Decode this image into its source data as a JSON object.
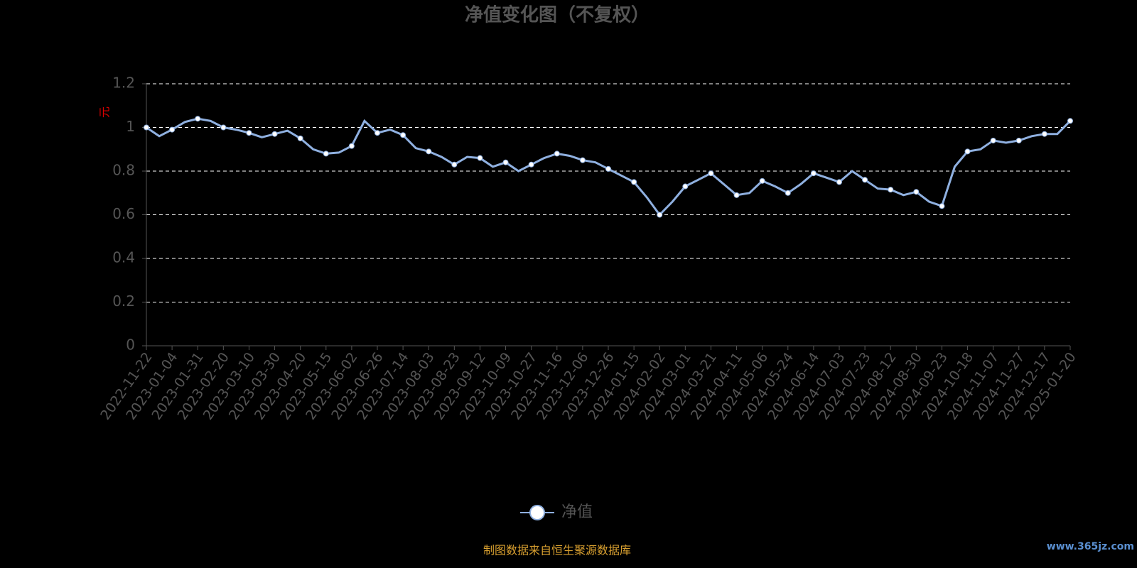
{
  "chart_data": {
    "type": "line",
    "title": "净值变化图（不复权）",
    "y_label": "元",
    "categories": [
      "2022-11-22",
      null,
      "2023-01-04",
      null,
      "2023-01-31",
      null,
      "2023-02-20",
      null,
      "2023-03-10",
      null,
      "2023-03-30",
      null,
      "2023-04-20",
      null,
      "2023-05-15",
      null,
      "2023-06-02",
      null,
      "2023-06-26",
      null,
      "2023-07-14",
      null,
      "2023-08-03",
      null,
      "2023-08-23",
      null,
      "2023-09-12",
      null,
      "2023-10-09",
      null,
      "2023-10-27",
      null,
      "2023-11-16",
      null,
      "2023-12-06",
      null,
      "2023-12-26",
      null,
      "2024-01-15",
      null,
      "2024-02-02",
      null,
      "2024-03-01",
      null,
      "2024-03-21",
      null,
      "2024-04-11",
      null,
      "2024-05-06",
      null,
      "2024-05-24",
      null,
      "2024-06-14",
      null,
      "2024-07-03",
      null,
      "2024-07-23",
      null,
      "2024-08-12",
      null,
      "2024-08-30",
      null,
      "2024-09-23",
      null,
      "2024-10-18",
      null,
      "2024-11-07",
      null,
      "2024-11-27",
      null,
      "2024-12-17",
      null,
      "2025-01-20"
    ],
    "series": [
      {
        "name": "净值",
        "color": "#8fb0e0",
        "values": [
          1.0,
          0.96,
          0.99,
          1.025,
          1.04,
          1.03,
          1.0,
          0.99,
          0.975,
          0.955,
          0.97,
          0.985,
          0.95,
          0.9,
          0.88,
          0.885,
          0.915,
          1.03,
          0.975,
          0.99,
          0.965,
          0.905,
          0.89,
          0.865,
          0.83,
          0.865,
          0.86,
          0.82,
          0.84,
          0.8,
          0.83,
          0.86,
          0.88,
          0.87,
          0.85,
          0.84,
          0.81,
          0.78,
          0.75,
          0.68,
          0.6,
          0.66,
          0.73,
          0.76,
          0.79,
          0.74,
          0.69,
          0.7,
          0.755,
          0.73,
          0.7,
          0.74,
          0.79,
          0.77,
          0.75,
          0.8,
          0.76,
          0.72,
          0.715,
          0.69,
          0.705,
          0.66,
          0.64,
          0.82,
          0.89,
          0.9,
          0.94,
          0.93,
          0.94,
          0.96,
          0.97,
          0.97,
          1.03
        ]
      }
    ],
    "ylim": [
      0,
      1.2
    ],
    "yticks": [
      0,
      0.2,
      0.4,
      0.6,
      0.8,
      1,
      1.2
    ],
    "grid": true,
    "footer": "制图数据来自恒生聚源数据库",
    "watermark": "www.365jz.com"
  }
}
